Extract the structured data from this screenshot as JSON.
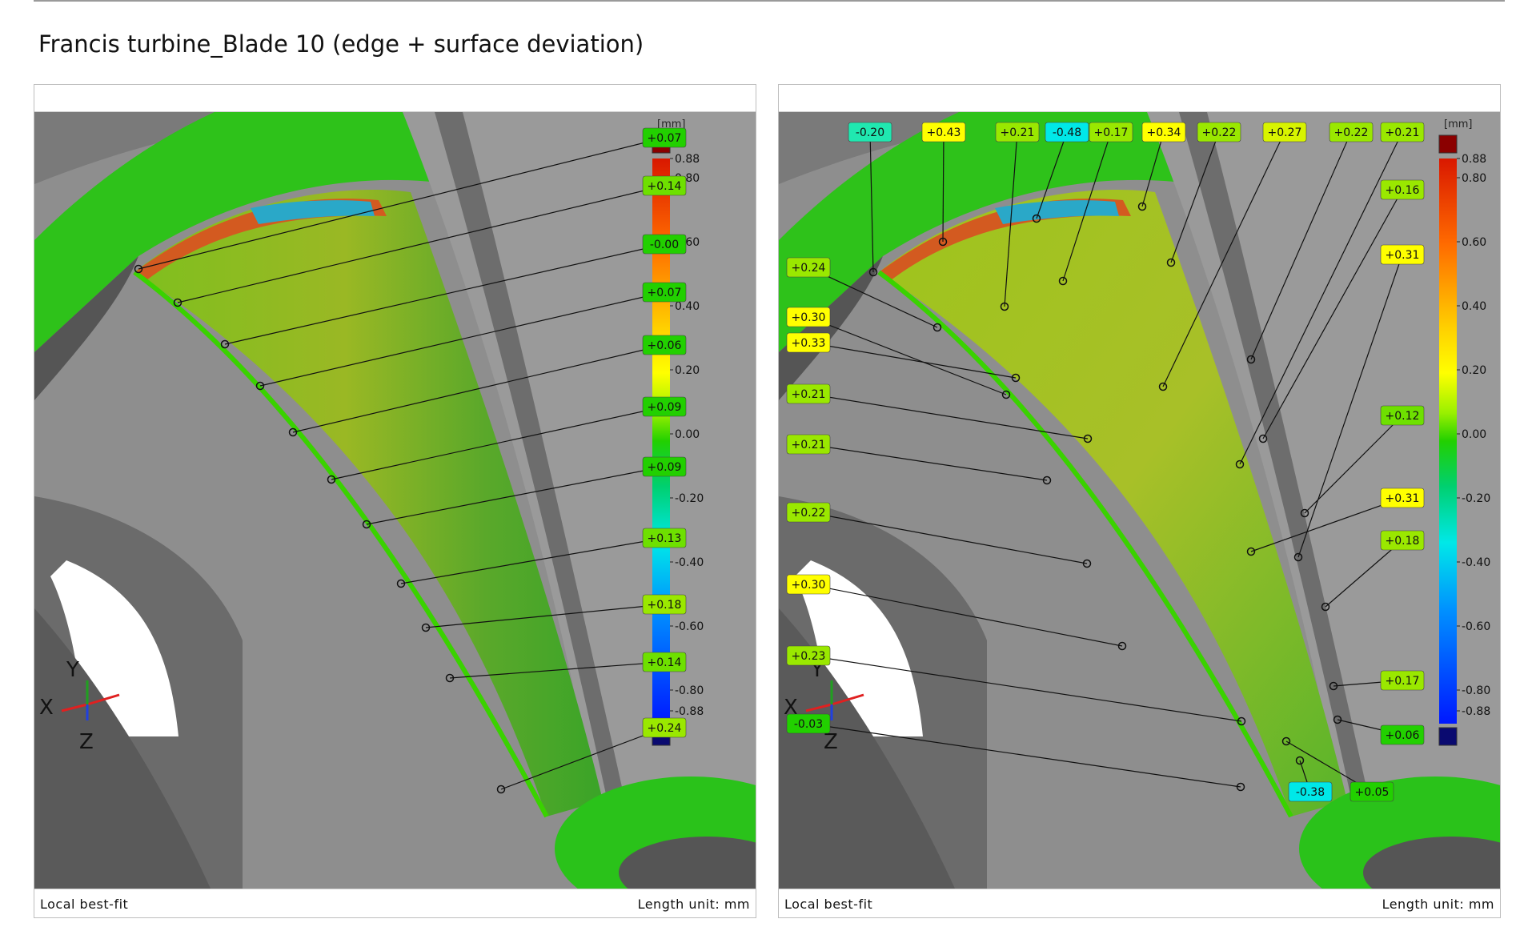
{
  "title": "Francis turbine_Blade 10 (edge + surface deviation)",
  "panels": [
    {
      "footer_left": "Local best-fit",
      "footer_right": "Length unit: mm",
      "unit": "[mm]",
      "scale_ticks": [
        "0.88",
        "0.80",
        "0.60",
        "0.40",
        "0.20",
        "0.00",
        "-0.20",
        "-0.40",
        "-0.60",
        "-0.80",
        "-0.88"
      ],
      "axis_letters": [
        "Y",
        "X",
        "Z"
      ],
      "labels": [
        "+0.07",
        "+0.14",
        "-0.00",
        "+0.07",
        "+0.06",
        "+0.09",
        "+0.09",
        "+0.13",
        "+0.18",
        "+0.14",
        "+0.24"
      ]
    },
    {
      "footer_left": "Local best-fit",
      "footer_right": "Length unit: mm",
      "unit": "[mm]",
      "scale_ticks": [
        "0.88",
        "0.80",
        "0.60",
        "0.40",
        "0.20",
        "0.00",
        "-0.20",
        "-0.40",
        "-0.60",
        "-0.80",
        "-0.88"
      ],
      "axis_letters": [
        "Y",
        "X",
        "Z"
      ],
      "labels": [
        "-0.20",
        "+0.43",
        "+0.21",
        "-0.48",
        "+0.17",
        "+0.34",
        "+0.22",
        "+0.27",
        "+0.22",
        "+0.21",
        "+0.16",
        "+0.31",
        "+0.12",
        "+0.31",
        "+0.18",
        "+0.17",
        "+0.06",
        "+0.24",
        "+0.30",
        "+0.33",
        "+0.21",
        "+0.21",
        "+0.22",
        "+0.30",
        "+0.23",
        "-0.03",
        "-0.38",
        "+0.05"
      ]
    }
  ],
  "colors": {
    "deviation_green": "#22c400",
    "deviation_yellow": "#ffff00",
    "deviation_red": "#e02000",
    "deviation_cyan": "#00e8e8",
    "deviation_blue": "#0030ff",
    "max_box": "#8b0000",
    "min_box": "#0a0a70",
    "metal_gray": "#8c8c8c"
  }
}
